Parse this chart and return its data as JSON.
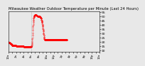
{
  "title": "Milwaukee Weather Outdoor Temperature per Minute (Last 24 Hours)",
  "title_fontsize": 3.8,
  "bg_color": "#e8e8e8",
  "line_color": "#ff0000",
  "vline_color": "#888888",
  "ylim": [
    8,
    56
  ],
  "yticks": [
    10,
    15,
    20,
    25,
    30,
    35,
    40,
    45,
    50,
    55
  ],
  "ytick_fontsize": 3.2,
  "xtick_fontsize": 2.8,
  "xtick_positions": [
    0,
    60,
    120,
    180,
    240,
    300,
    360,
    420,
    480,
    540,
    600,
    660,
    720,
    780,
    840,
    900,
    960,
    1020,
    1080,
    1140,
    1200,
    1260,
    1320,
    1380,
    1439
  ],
  "xtick_labels": [
    "12a",
    "",
    "2a",
    "",
    "4a",
    "",
    "6a",
    "",
    "8a",
    "",
    "10a",
    "",
    "12p",
    "",
    "2p",
    "",
    "4p",
    "",
    "6p",
    "",
    "8p",
    "",
    "10p",
    "",
    "12a"
  ],
  "vline_x": 360,
  "temp_data": [
    20,
    20,
    20,
    19,
    19,
    19,
    19,
    19,
    19,
    19,
    19,
    19,
    19,
    19,
    19,
    19,
    19,
    19,
    19,
    19,
    19,
    18,
    18,
    18,
    18,
    18,
    18,
    18,
    18,
    18,
    18,
    18,
    18,
    18,
    17,
    17,
    17,
    17,
    17,
    17,
    17,
    17,
    17,
    17,
    17,
    17,
    17,
    17,
    17,
    17,
    17,
    17,
    16,
    16,
    16,
    16,
    16,
    16,
    16,
    16,
    16,
    16,
    16,
    16,
    16,
    16,
    16,
    16,
    16,
    16,
    16,
    16,
    16,
    16,
    16,
    16,
    16,
    16,
    16,
    16,
    16,
    16,
    16,
    16,
    16,
    16,
    16,
    16,
    16,
    16,
    16,
    16,
    16,
    16,
    16,
    16,
    16,
    16,
    16,
    16,
    16,
    16,
    16,
    16,
    16,
    16,
    16,
    16,
    16,
    16,
    16,
    16,
    16,
    16,
    16,
    16,
    16,
    16,
    16,
    16,
    16,
    15,
    15,
    15,
    15,
    15,
    15,
    15,
    15,
    15,
    15,
    15,
    15,
    15,
    15,
    15,
    15,
    15,
    15,
    15,
    15,
    15,
    15,
    15,
    15,
    15,
    15,
    15,
    15,
    15,
    15,
    15,
    15,
    15,
    15,
    15,
    15,
    15,
    15,
    15,
    15,
    15,
    15,
    15,
    15,
    15,
    15,
    15,
    15,
    15,
    15,
    15,
    15,
    15,
    15,
    15,
    15,
    15,
    15,
    15,
    15,
    15,
    15,
    15,
    15,
    15,
    15,
    15,
    15,
    15,
    15,
    15,
    15,
    15,
    15,
    15,
    15,
    15,
    15,
    15,
    15,
    15,
    15,
    15,
    15,
    15,
    15,
    15,
    15,
    15,
    15,
    15,
    15,
    15,
    15,
    15,
    15,
    15,
    15,
    15,
    15,
    15,
    15,
    15,
    15,
    15,
    15,
    15,
    15,
    15,
    15,
    15,
    15,
    15,
    15,
    15,
    15,
    15,
    15,
    15,
    14,
    14,
    14,
    14,
    14,
    14,
    14,
    14,
    14,
    14,
    14,
    14,
    14,
    14,
    14,
    14,
    14,
    14,
    14,
    14,
    14,
    14,
    14,
    14,
    14,
    14,
    14,
    14,
    14,
    14,
    14,
    14,
    14,
    14,
    14,
    14,
    14,
    14,
    14,
    14,
    14,
    14,
    14,
    14,
    14,
    14,
    14,
    14,
    14,
    14,
    14,
    14,
    14,
    14,
    14,
    14,
    14,
    14,
    14,
    14,
    14,
    14,
    14,
    14,
    14,
    14,
    14,
    14,
    14,
    14,
    14,
    14,
    14,
    14,
    14,
    14,
    14,
    14,
    14,
    14,
    14,
    14,
    14,
    14,
    14,
    14,
    14,
    14,
    14,
    14,
    14,
    14,
    14,
    14,
    14,
    14,
    14,
    14,
    14,
    14,
    14,
    14,
    14,
    14,
    14,
    14,
    14,
    14,
    14,
    14,
    14,
    14,
    14,
    14,
    14,
    14,
    14,
    14,
    14,
    14,
    15,
    15,
    15,
    15,
    15,
    16,
    16,
    16,
    17,
    17,
    18,
    19,
    20,
    21,
    22,
    23,
    24,
    25,
    27,
    28,
    30,
    31,
    33,
    34,
    36,
    37,
    38,
    39,
    40,
    41,
    42,
    43,
    44,
    45,
    46,
    46,
    47,
    47,
    48,
    48,
    49,
    49,
    49,
    50,
    50,
    50,
    50,
    51,
    51,
    51,
    51,
    51,
    52,
    52,
    52,
    52,
    52,
    52,
    52,
    52,
    52,
    52,
    52,
    52,
    52,
    52,
    52,
    52,
    52,
    52,
    52,
    52,
    52,
    52,
    52,
    52,
    52,
    52,
    52,
    52,
    52,
    52,
    52,
    51,
    51,
    51,
    51,
    51,
    51,
    51,
    51,
    51,
    51,
    51,
    51,
    51,
    50,
    50,
    50,
    50,
    50,
    50,
    50,
    50,
    50,
    50,
    50,
    50,
    50,
    50,
    50,
    50,
    50,
    50,
    50,
    50,
    50,
    50,
    50,
    50,
    50,
    50,
    50,
    50,
    50,
    50,
    50,
    50,
    50,
    50,
    50,
    50,
    50,
    50,
    50,
    49,
    49,
    49,
    49,
    49,
    49,
    49,
    49,
    49,
    49,
    48,
    48,
    48,
    48,
    48,
    48,
    48,
    48,
    47,
    47,
    47,
    47,
    47,
    47,
    46,
    46,
    46,
    46,
    45,
    45,
    45,
    44,
    44,
    44,
    43,
    43,
    43,
    42,
    42,
    41,
    41,
    40,
    40,
    39,
    39,
    38,
    38,
    37,
    36,
    36,
    35,
    35,
    34,
    33,
    33,
    32,
    32,
    31,
    30,
    30,
    29,
    29,
    28,
    27,
    27,
    26,
    26,
    25,
    25,
    24,
    24,
    23,
    23,
    22,
    22,
    22,
    22,
    22,
    22,
    22,
    22,
    22,
    22,
    22,
    22,
    22,
    22,
    22,
    22,
    22,
    22,
    22,
    22,
    22,
    22,
    22,
    22,
    22,
    22,
    22,
    22,
    22,
    22,
    22,
    22,
    22,
    22,
    22,
    22,
    22,
    22,
    22,
    22,
    22,
    22,
    22,
    22,
    22,
    22,
    22,
    22,
    22,
    22,
    22,
    22,
    22,
    22,
    22,
    22,
    22,
    22,
    22,
    22,
    22,
    22,
    22,
    22,
    22,
    22,
    22,
    22,
    22,
    22,
    22,
    22,
    22,
    22,
    22,
    22,
    22,
    22,
    22,
    22,
    22,
    22,
    22,
    22,
    22,
    22,
    22,
    22,
    22,
    22,
    22,
    22,
    22,
    22,
    22,
    22,
    22,
    22,
    22,
    22,
    22,
    22,
    22,
    22,
    22,
    22,
    22,
    22,
    22,
    22,
    22,
    22,
    22,
    22,
    22,
    22,
    22,
    22,
    22,
    22,
    22,
    22,
    22,
    22,
    22,
    22,
    22,
    22,
    22,
    22,
    22,
    22,
    22,
    22,
    22,
    22,
    22,
    22,
    22,
    22,
    22,
    22,
    22,
    22,
    22,
    22,
    22,
    22,
    22,
    22,
    22,
    22,
    22,
    22,
    22,
    22,
    22,
    22,
    22,
    22,
    22,
    22,
    22,
    22,
    22,
    22,
    22,
    22,
    22,
    22,
    22,
    22,
    22,
    22,
    22,
    22,
    22,
    22,
    22,
    22,
    22,
    22,
    22,
    22,
    22,
    22,
    22,
    22,
    22,
    22,
    22,
    22,
    22,
    22,
    22,
    22,
    22,
    22,
    22,
    22,
    22,
    22,
    22,
    22,
    22,
    22,
    22,
    22,
    22,
    22,
    22,
    22,
    22,
    22,
    22,
    22,
    22,
    22,
    22,
    22,
    22,
    22,
    22,
    22,
    22,
    22,
    22,
    22,
    22,
    22,
    22,
    22,
    22,
    22,
    22,
    22,
    22,
    22,
    22,
    22,
    22,
    22,
    22,
    22,
    22,
    22,
    22,
    22,
    22,
    22,
    22,
    22,
    22,
    22,
    22,
    22,
    22,
    22,
    22,
    22,
    22,
    22,
    22,
    22,
    22,
    22,
    22,
    22,
    22,
    22,
    22,
    22,
    22,
    22,
    22,
    22,
    22,
    22,
    22,
    22,
    22,
    22,
    22,
    22,
    22,
    22,
    22,
    22,
    22,
    22,
    22,
    22,
    22,
    22,
    22,
    22,
    22,
    22,
    22,
    22,
    22,
    22,
    22,
    22,
    22,
    22,
    22,
    22,
    22,
    22,
    22,
    22,
    22,
    22,
    22,
    22,
    22,
    22,
    22,
    22,
    22,
    22,
    22,
    22,
    22,
    22,
    22,
    22,
    22,
    22,
    22,
    22,
    22,
    22,
    22,
    22,
    22,
    22,
    22,
    22,
    22,
    22,
    22,
    22,
    22,
    22,
    22,
    22,
    22,
    22,
    22,
    22,
    22,
    22,
    22,
    22,
    22,
    22,
    22,
    22
  ]
}
